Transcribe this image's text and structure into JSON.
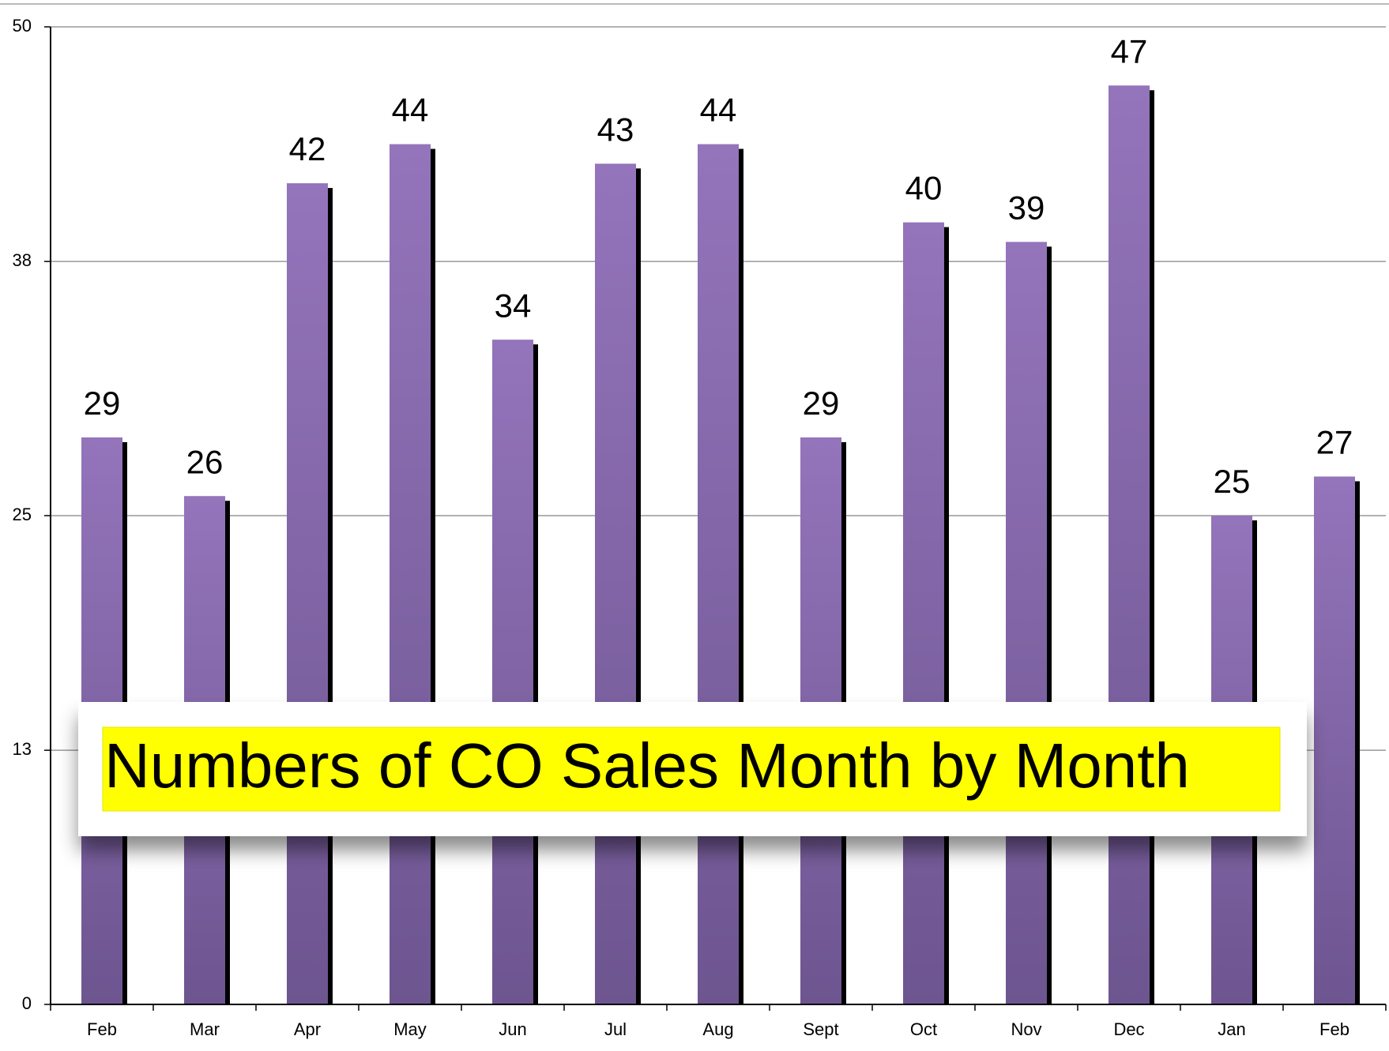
{
  "chart_data": {
    "type": "bar",
    "title": "Numbers of CO Sales Month by Month",
    "categories": [
      "Feb",
      "Mar",
      "Apr",
      "May",
      "Jun",
      "Jul",
      "Aug",
      "Sept",
      "Oct",
      "Nov",
      "Dec",
      "Jan",
      "Feb"
    ],
    "values": [
      29,
      26,
      42,
      44,
      34,
      43,
      44,
      29,
      40,
      39,
      47,
      25,
      27
    ],
    "color": "#8a6db4",
    "ylim": [
      0,
      50
    ],
    "yticks": [
      0,
      13,
      25,
      38,
      50
    ],
    "grid": true
  }
}
